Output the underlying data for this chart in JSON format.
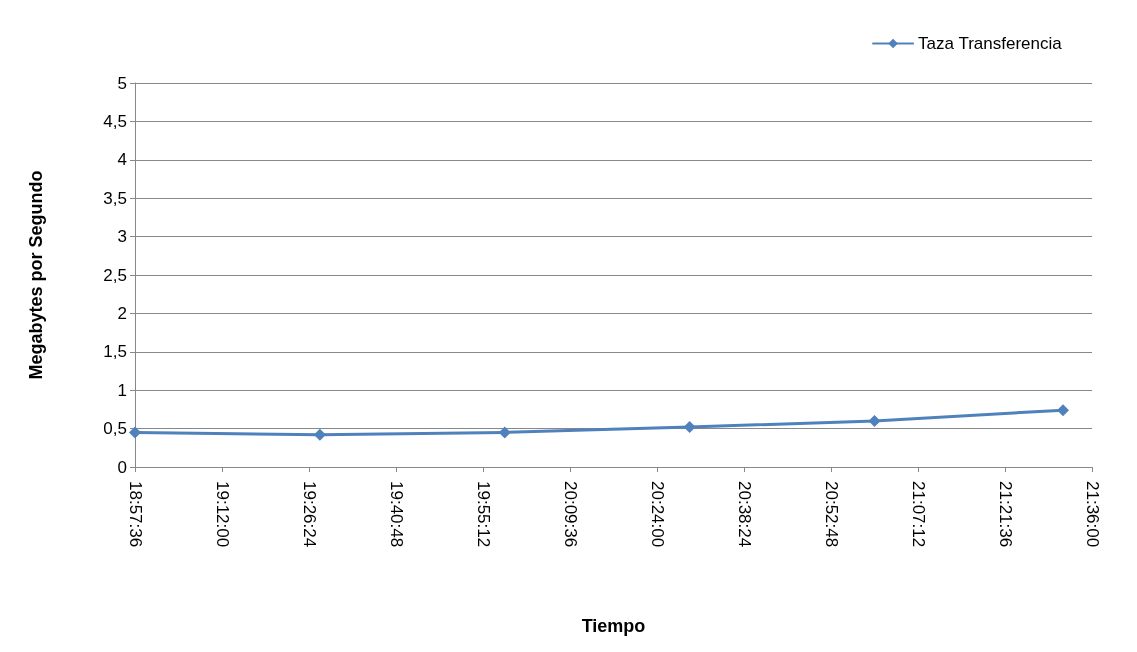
{
  "chart_data": {
    "type": "line",
    "xlabel": "Tiempo",
    "ylabel": "Megabytes por Segundo",
    "x": [
      18.96,
      19.47,
      19.98,
      20.49,
      21.0,
      21.52
    ],
    "series": [
      {
        "name": "Taza Transferencia",
        "color": "#4f81bd",
        "values": [
          0.45,
          0.42,
          0.45,
          0.52,
          0.6,
          0.74
        ]
      }
    ],
    "xlim": [
      18.96,
      21.6
    ],
    "xticks": [
      {
        "value": 18.96,
        "label": "18:57:36"
      },
      {
        "value": 19.2,
        "label": "19:12:00"
      },
      {
        "value": 19.44,
        "label": "19:26:24"
      },
      {
        "value": 19.68,
        "label": "19:40:48"
      },
      {
        "value": 19.92,
        "label": "19:55:12"
      },
      {
        "value": 20.16,
        "label": "20:09:36"
      },
      {
        "value": 20.4,
        "label": "20:24:00"
      },
      {
        "value": 20.64,
        "label": "20:38:24"
      },
      {
        "value": 20.88,
        "label": "20:52:48"
      },
      {
        "value": 21.12,
        "label": "21:07:12"
      },
      {
        "value": 21.36,
        "label": "21:21:36"
      },
      {
        "value": 21.6,
        "label": "21:36:00"
      }
    ],
    "ylim": [
      0,
      5
    ],
    "yticks": [
      0,
      {
        "value": 0.5,
        "label": "0,5"
      },
      1,
      {
        "value": 1.5,
        "label": "1,5"
      },
      2,
      {
        "value": 2.5,
        "label": "2,5"
      },
      3,
      {
        "value": 3.5,
        "label": "3,5"
      },
      4,
      {
        "value": 4.5,
        "label": "4,5"
      },
      5
    ],
    "grid": "y",
    "legend": "top right",
    "marker": "diamond",
    "line_style": "solid"
  }
}
